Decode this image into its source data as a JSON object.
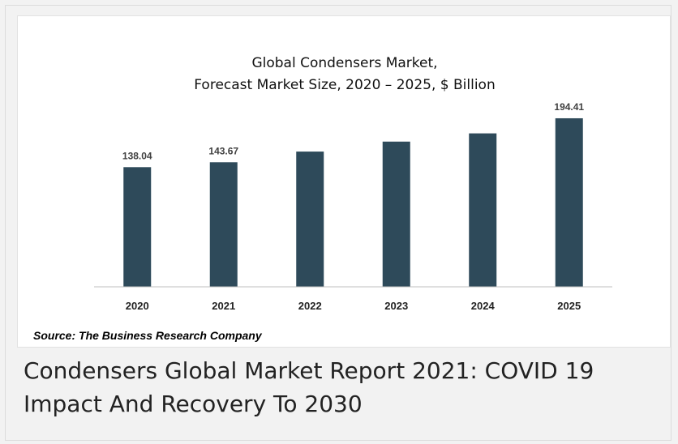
{
  "chart_data": {
    "type": "bar",
    "title": "Global Condensers Market,",
    "subtitle": "Forecast Market Size, 2020 – 2025, $ Billion",
    "categories": [
      "2020",
      "2021",
      "2022",
      "2023",
      "2024",
      "2025"
    ],
    "values": [
      138.04,
      143.67,
      156.0,
      167.5,
      177.0,
      194.41
    ],
    "data_labels": [
      "138.04",
      "143.67",
      "",
      "",
      "",
      "194.41"
    ],
    "xlabel": "",
    "ylabel": "",
    "ylim": [
      0,
      200
    ],
    "grid": false,
    "legend": "none",
    "bar_color": "#2e4a5a"
  },
  "source_text": "Source: The Business Research Company",
  "report_title": "Condensers Global Market Report 2021: COVID 19 Impact And Recovery To 2030"
}
